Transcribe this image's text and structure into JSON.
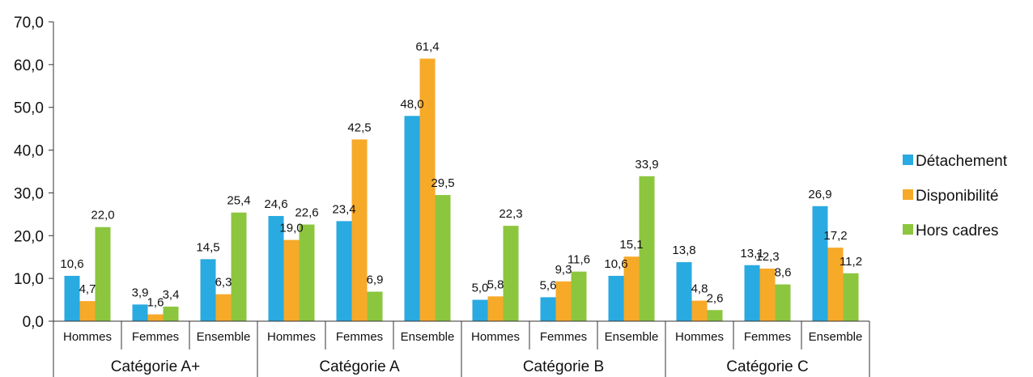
{
  "chart_data": {
    "type": "bar",
    "groups": [
      "Catégorie A+",
      "Catégorie A",
      "Catégorie B",
      "Catégorie C"
    ],
    "subcategories": [
      "Hommes",
      "Femmes",
      "Ensemble"
    ],
    "ylim": [
      0,
      70
    ],
    "yticks": [
      "0,0",
      "10,0",
      "20,0",
      "30,0",
      "40,0",
      "50,0",
      "60,0",
      "70,0"
    ],
    "grid": false,
    "legend_position": "right",
    "title": "",
    "xlabel": "",
    "ylabel": "",
    "series": [
      {
        "name": "Détachement",
        "color": "#29aae1",
        "values": [
          10.6,
          3.9,
          14.5,
          24.6,
          23.4,
          48.0,
          5.0,
          5.6,
          10.6,
          13.8,
          13.1,
          26.9
        ],
        "labels": [
          "10,6",
          "3,9",
          "14,5",
          "24,6",
          "23,4",
          "48,0",
          "5,0",
          "5,6",
          "10,6",
          "13,8",
          "13,1",
          "26,9"
        ]
      },
      {
        "name": "Disponibilité",
        "color": "#f7a928",
        "values": [
          4.7,
          1.6,
          6.3,
          19.0,
          42.5,
          61.4,
          5.8,
          9.3,
          15.1,
          4.8,
          12.3,
          17.2
        ],
        "labels": [
          "4,7",
          "1,6",
          "6,3",
          "19,0",
          "42,5",
          "61,4",
          "5,8",
          "9,3",
          "15,1",
          "4,8",
          "12,3",
          "17,2"
        ]
      },
      {
        "name": "Hors cadres",
        "color": "#8cc63e",
        "values": [
          22.0,
          3.4,
          25.4,
          22.6,
          6.9,
          29.5,
          22.3,
          11.6,
          33.9,
          2.6,
          8.6,
          11.2
        ],
        "labels": [
          "22,0",
          "3,4",
          "25,4",
          "22,6",
          "6,9",
          "29,5",
          "22,3",
          "11,6",
          "33,9",
          "2,6",
          "8,6",
          "11,2"
        ]
      }
    ]
  }
}
